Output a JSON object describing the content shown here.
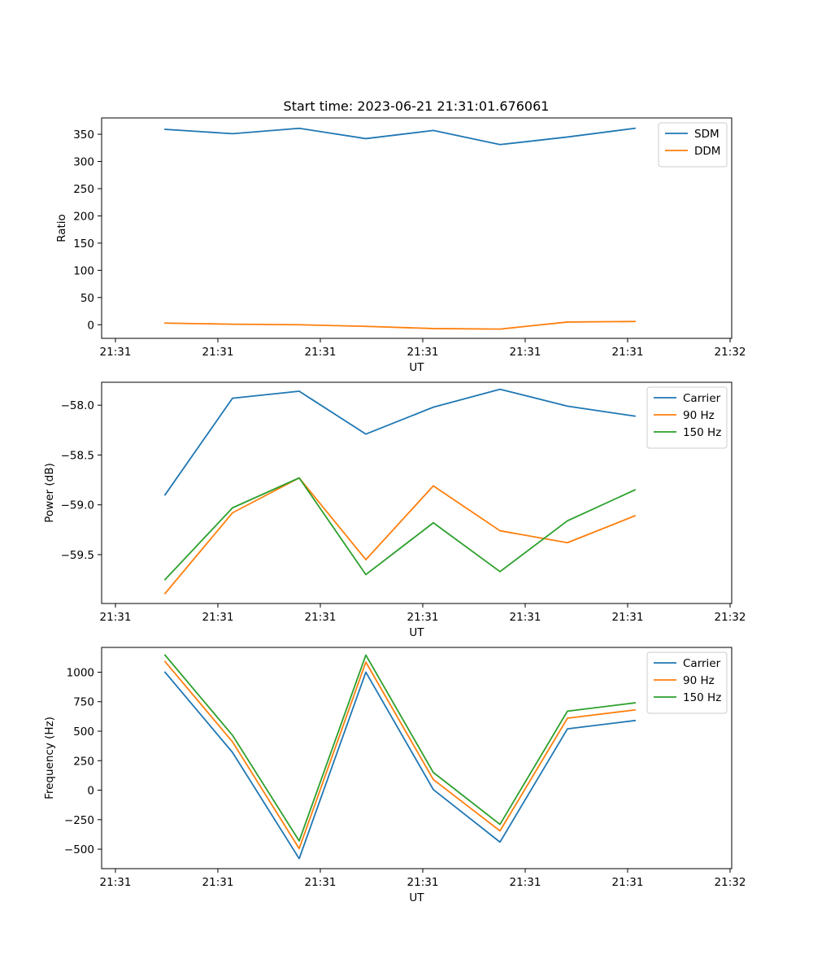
{
  "figure_title": "Start time: 2023-06-21 21:31:01.676061",
  "chart_data": [
    {
      "type": "line",
      "xlabel": "UT",
      "ylabel": "Ratio",
      "x_tick_labels": [
        "21:31",
        "21:31",
        "21:31",
        "21:31",
        "21:31",
        "21:31",
        "21:32"
      ],
      "y_ticks": [
        0,
        50,
        100,
        150,
        200,
        250,
        300,
        350
      ],
      "ylim": [
        -25,
        380
      ],
      "legend_placement": "upper-right",
      "series": [
        {
          "name": "SDM",
          "color": "#1f77b4",
          "values": [
            359,
            351,
            361,
            342,
            357,
            331,
            345,
            361
          ]
        },
        {
          "name": "DDM",
          "color": "#ff7f0e",
          "values": [
            3,
            1,
            0,
            -3,
            -7,
            -8,
            5,
            6
          ]
        }
      ]
    },
    {
      "type": "line",
      "xlabel": "UT",
      "ylabel": "Power (dB)",
      "x_tick_labels": [
        "21:31",
        "21:31",
        "21:31",
        "21:31",
        "21:31",
        "21:31",
        "21:32"
      ],
      "y_ticks": [
        -58.0,
        -58.5,
        -59.0,
        -59.5
      ],
      "y_tick_labels": [
        "−58.0",
        "−58.5",
        "−59.0",
        "−59.5"
      ],
      "ylim": [
        -59.99,
        -57.77
      ],
      "legend_placement": "upper-right",
      "series": [
        {
          "name": "Carrier",
          "color": "#1f77b4",
          "values": [
            -58.9,
            -57.93,
            -57.86,
            -58.29,
            -58.02,
            -57.84,
            -58.01,
            -58.11
          ]
        },
        {
          "name": "90 Hz",
          "color": "#ff7f0e",
          "values": [
            -59.89,
            -59.08,
            -58.73,
            -59.55,
            -58.81,
            -59.26,
            -59.38,
            -59.11
          ]
        },
        {
          "name": "150 Hz",
          "color": "#2ca02c",
          "values": [
            -59.75,
            -59.03,
            -58.73,
            -59.7,
            -59.18,
            -59.67,
            -59.16,
            -58.85
          ]
        }
      ]
    },
    {
      "type": "line",
      "xlabel": "UT",
      "ylabel": "Frequency (Hz)",
      "x_tick_labels": [
        "21:31",
        "21:31",
        "21:31",
        "21:31",
        "21:31",
        "21:31",
        "21:32"
      ],
      "y_ticks": [
        -500,
        -250,
        0,
        250,
        500,
        750,
        1000
      ],
      "y_tick_labels": [
        "−500",
        "−250",
        "0",
        "250",
        "500",
        "750",
        "1000"
      ],
      "ylim": [
        -665,
        1210
      ],
      "legend_placement": "upper-right",
      "series": [
        {
          "name": "Carrier",
          "color": "#1f77b4",
          "values": [
            1000,
            320,
            -580,
            1000,
            5,
            -440,
            520,
            590
          ]
        },
        {
          "name": "90 Hz",
          "color": "#ff7f0e",
          "values": [
            1090,
            410,
            -495,
            1085,
            90,
            -345,
            610,
            680
          ]
        },
        {
          "name": "150 Hz",
          "color": "#2ca02c",
          "values": [
            1145,
            465,
            -430,
            1145,
            150,
            -290,
            670,
            740
          ]
        }
      ]
    }
  ]
}
